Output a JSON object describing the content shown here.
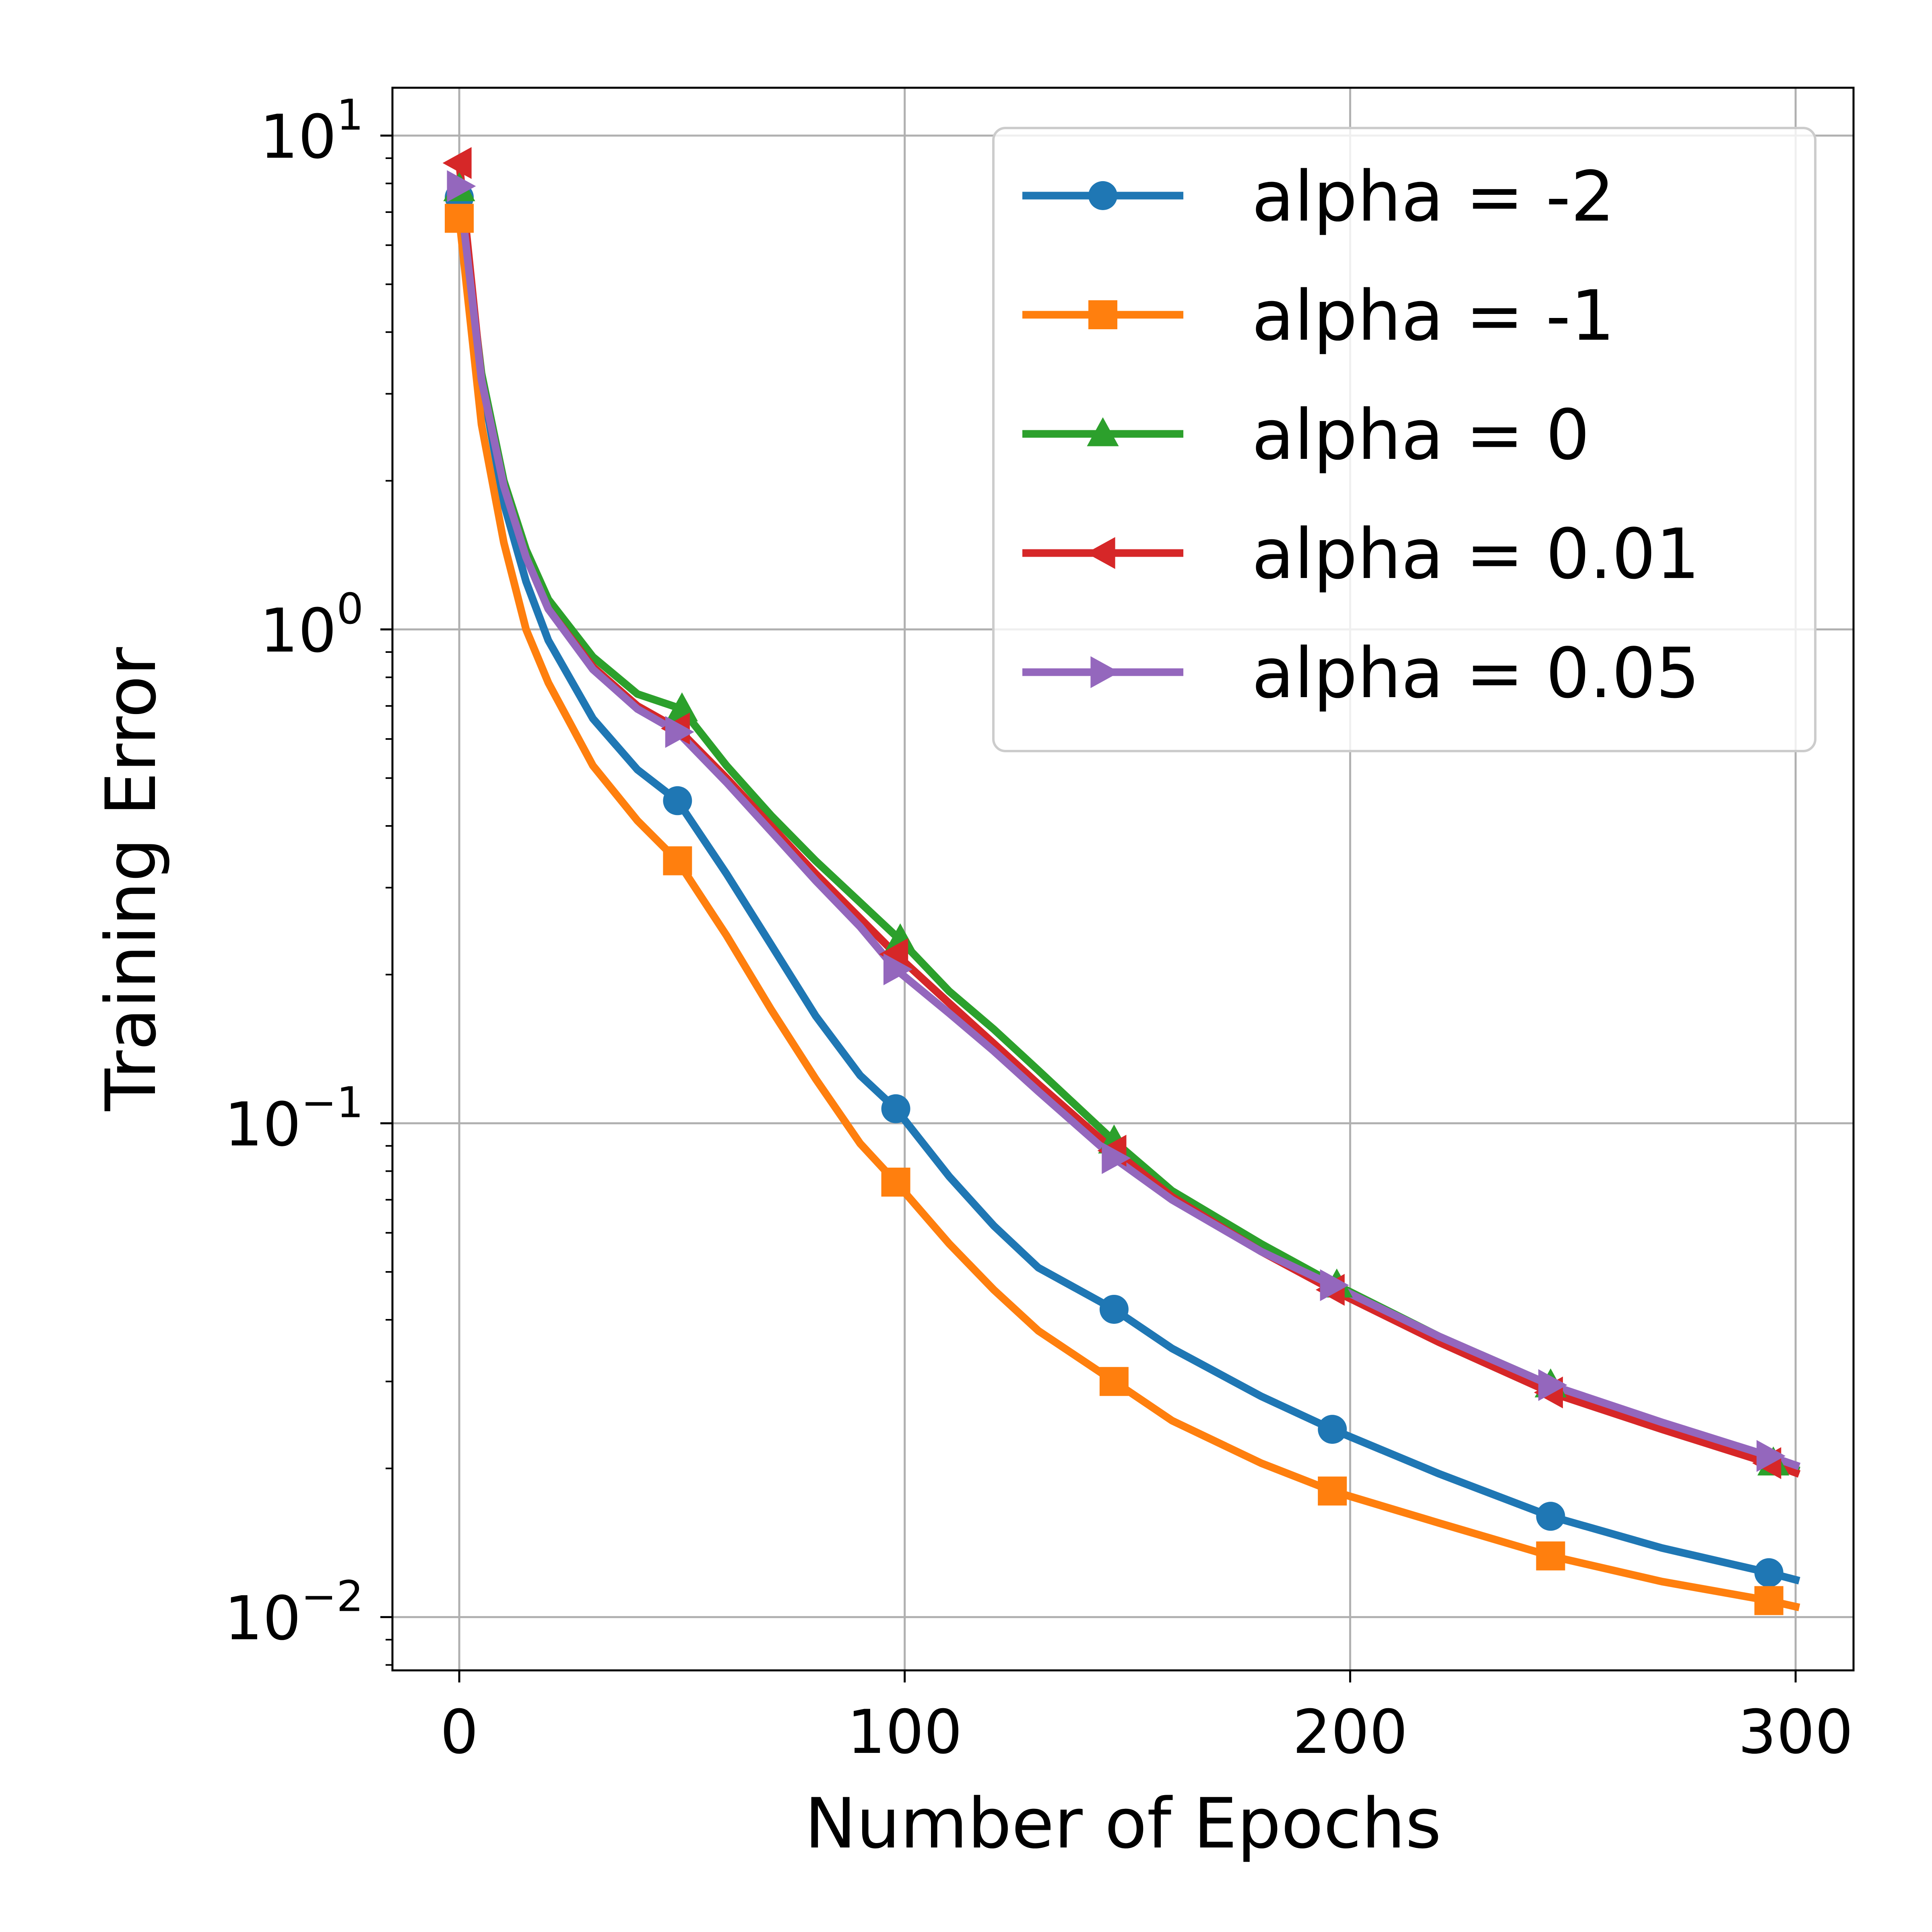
{
  "chart_data": {
    "type": "line",
    "title": "",
    "xlabel": "Number of Epochs",
    "ylabel": "Training Error",
    "yscale": "log",
    "xlim": [
      -15,
      313
    ],
    "ylim": [
      0.0078,
      12.5
    ],
    "grid": true,
    "legend_position": "upper-right",
    "x_ticks": [
      {
        "value": 0,
        "label": "0"
      },
      {
        "value": 100,
        "label": "100"
      },
      {
        "value": 200,
        "label": "200"
      },
      {
        "value": 300,
        "label": "300"
      }
    ],
    "y_ticks": [
      {
        "value": 0.01,
        "base": "10",
        "exp": "−2"
      },
      {
        "value": 0.1,
        "base": "10",
        "exp": "−1"
      },
      {
        "value": 1,
        "base": "10",
        "exp": "0"
      },
      {
        "value": 10,
        "base": "10",
        "exp": "1"
      }
    ],
    "series": [
      {
        "name": "alpha = -2",
        "color": "#1f77b4",
        "marker": "circle",
        "x": [
          0,
          5,
          10,
          15,
          20,
          30,
          40,
          49,
          60,
          70,
          80,
          90,
          98,
          110,
          120,
          130,
          147,
          160,
          180,
          196,
          220,
          245,
          270,
          294,
          300
        ],
        "y": [
          7.5,
          3.2,
          1.8,
          1.25,
          0.95,
          0.66,
          0.52,
          0.45,
          0.32,
          0.23,
          0.165,
          0.125,
          0.107,
          0.078,
          0.062,
          0.051,
          0.042,
          0.035,
          0.028,
          0.024,
          0.0195,
          0.016,
          0.0138,
          0.0123,
          0.0119
        ]
      },
      {
        "name": "alpha = -1",
        "color": "#ff7f0e",
        "marker": "square",
        "x": [
          0,
          5,
          10,
          15,
          20,
          30,
          40,
          49,
          60,
          70,
          80,
          90,
          98,
          110,
          120,
          130,
          147,
          160,
          180,
          196,
          220,
          245,
          270,
          294,
          300
        ],
        "y": [
          6.8,
          2.6,
          1.5,
          1.0,
          0.78,
          0.53,
          0.41,
          0.34,
          0.24,
          0.17,
          0.123,
          0.091,
          0.076,
          0.057,
          0.046,
          0.038,
          0.03,
          0.025,
          0.0205,
          0.018,
          0.0155,
          0.0133,
          0.0118,
          0.0108,
          0.0105
        ]
      },
      {
        "name": "alpha = 0",
        "color": "#2ca02c",
        "marker": "triangle-up",
        "x": [
          0,
          5,
          10,
          15,
          20,
          30,
          40,
          50,
          60,
          70,
          80,
          90,
          99,
          110,
          120,
          130,
          147,
          160,
          180,
          197,
          220,
          245,
          270,
          295,
          300
        ],
        "y": [
          7.8,
          3.3,
          2.0,
          1.45,
          1.15,
          0.88,
          0.74,
          0.69,
          0.53,
          0.42,
          0.34,
          0.28,
          0.235,
          0.185,
          0.155,
          0.128,
          0.092,
          0.073,
          0.057,
          0.047,
          0.037,
          0.0295,
          0.0245,
          0.0205,
          0.0199
        ]
      },
      {
        "name": "alpha = 0.01",
        "color": "#d62728",
        "marker": "triangle-left",
        "x": [
          0,
          5,
          10,
          15,
          20,
          30,
          40,
          49,
          60,
          70,
          80,
          90,
          98,
          110,
          120,
          130,
          147,
          160,
          180,
          196,
          220,
          245,
          270,
          294,
          300
        ],
        "y": [
          8.8,
          3.2,
          1.95,
          1.4,
          1.1,
          0.84,
          0.7,
          0.63,
          0.5,
          0.4,
          0.32,
          0.26,
          0.22,
          0.175,
          0.145,
          0.12,
          0.088,
          0.071,
          0.055,
          0.046,
          0.036,
          0.0285,
          0.024,
          0.0205,
          0.0196
        ]
      },
      {
        "name": "alpha = 0.05",
        "color": "#9467bd",
        "marker": "triangle-right",
        "x": [
          0,
          5,
          10,
          15,
          20,
          30,
          40,
          49,
          60,
          70,
          80,
          90,
          98,
          110,
          120,
          130,
          147,
          160,
          180,
          196,
          220,
          245,
          270,
          294,
          300
        ],
        "y": [
          7.9,
          3.2,
          1.95,
          1.4,
          1.1,
          0.83,
          0.69,
          0.62,
          0.49,
          0.39,
          0.31,
          0.25,
          0.205,
          0.167,
          0.14,
          0.116,
          0.085,
          0.07,
          0.055,
          0.047,
          0.037,
          0.0295,
          0.0248,
          0.0212,
          0.0203
        ]
      }
    ]
  }
}
